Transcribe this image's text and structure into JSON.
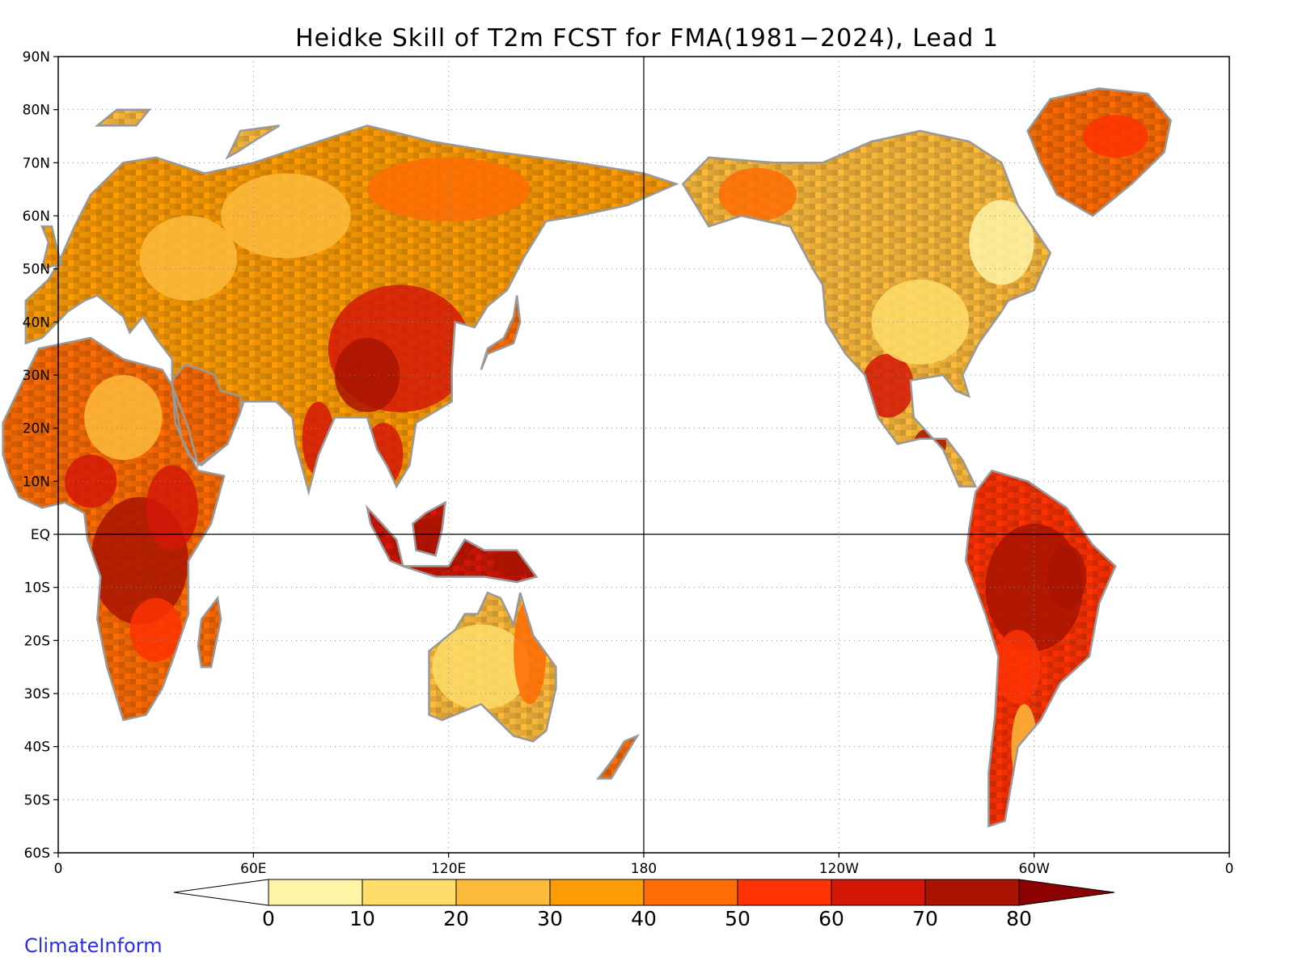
{
  "title": "Heidke Skill of T2m FCST for FMA(1981−2024), Lead 1",
  "brand": "ClimateInform",
  "map": {
    "projection": "equirectangular, Pacific-centered",
    "lon_range": [
      0,
      360
    ],
    "lat_range": [
      -60,
      90
    ],
    "grid": "dotted",
    "land_outline_color": "#999999",
    "ocean_color": "#ffffff"
  },
  "lat_ticks": [
    "90N",
    "80N",
    "70N",
    "60N",
    "50N",
    "40N",
    "30N",
    "20N",
    "10N",
    "EQ",
    "10S",
    "20S",
    "30S",
    "40S",
    "50S",
    "60S"
  ],
  "lon_ticks": [
    "0",
    "60E",
    "120E",
    "180",
    "120W",
    "60W",
    "0"
  ],
  "colorbar": {
    "labels": [
      "0",
      "10",
      "20",
      "30",
      "40",
      "50",
      "60",
      "70",
      "80"
    ],
    "colors": [
      "#ffffff",
      "#fff4a6",
      "#fedd6a",
      "#fdbb3c",
      "#fd9c05",
      "#fe6c04",
      "#fe3202",
      "#d31808",
      "#a81400",
      "#8b0000"
    ]
  },
  "chart_data": {
    "type": "heatmap",
    "title": "Heidke Skill of T2m FCST for FMA(1981−2024), Lead 1",
    "variable": "Heidke skill score",
    "levels": [
      0,
      10,
      20,
      30,
      40,
      50,
      60,
      70,
      80
    ],
    "regions": [
      {
        "name": "Siberia / northern Asia",
        "skill_range": [
          10,
          50
        ]
      },
      {
        "name": "China / Tibetan Plateau",
        "skill_range": [
          40,
          70
        ]
      },
      {
        "name": "India",
        "skill_range": [
          30,
          70
        ]
      },
      {
        "name": "Southeast Asia / Maritime Continent",
        "skill_range": [
          50,
          80
        ]
      },
      {
        "name": "Central & East Africa",
        "skill_range": [
          50,
          80
        ]
      },
      {
        "name": "Sahara / North Africa",
        "skill_range": [
          10,
          40
        ]
      },
      {
        "name": "Europe",
        "skill_range": [
          10,
          40
        ]
      },
      {
        "name": "Australia",
        "skill_range": [
          0,
          50
        ]
      },
      {
        "name": "Alaska / western Canada",
        "skill_range": [
          20,
          50
        ]
      },
      {
        "name": "Eastern Canada",
        "skill_range": [
          0,
          20
        ]
      },
      {
        "name": "United States",
        "skill_range": [
          0,
          30
        ]
      },
      {
        "name": "Mexico / Central America",
        "skill_range": [
          40,
          70
        ]
      },
      {
        "name": "Amazon / Brazil",
        "skill_range": [
          60,
          80
        ]
      },
      {
        "name": "Southern South America",
        "skill_range": [
          10,
          50
        ]
      },
      {
        "name": "Greenland",
        "skill_range": [
          30,
          60
        ]
      }
    ]
  }
}
